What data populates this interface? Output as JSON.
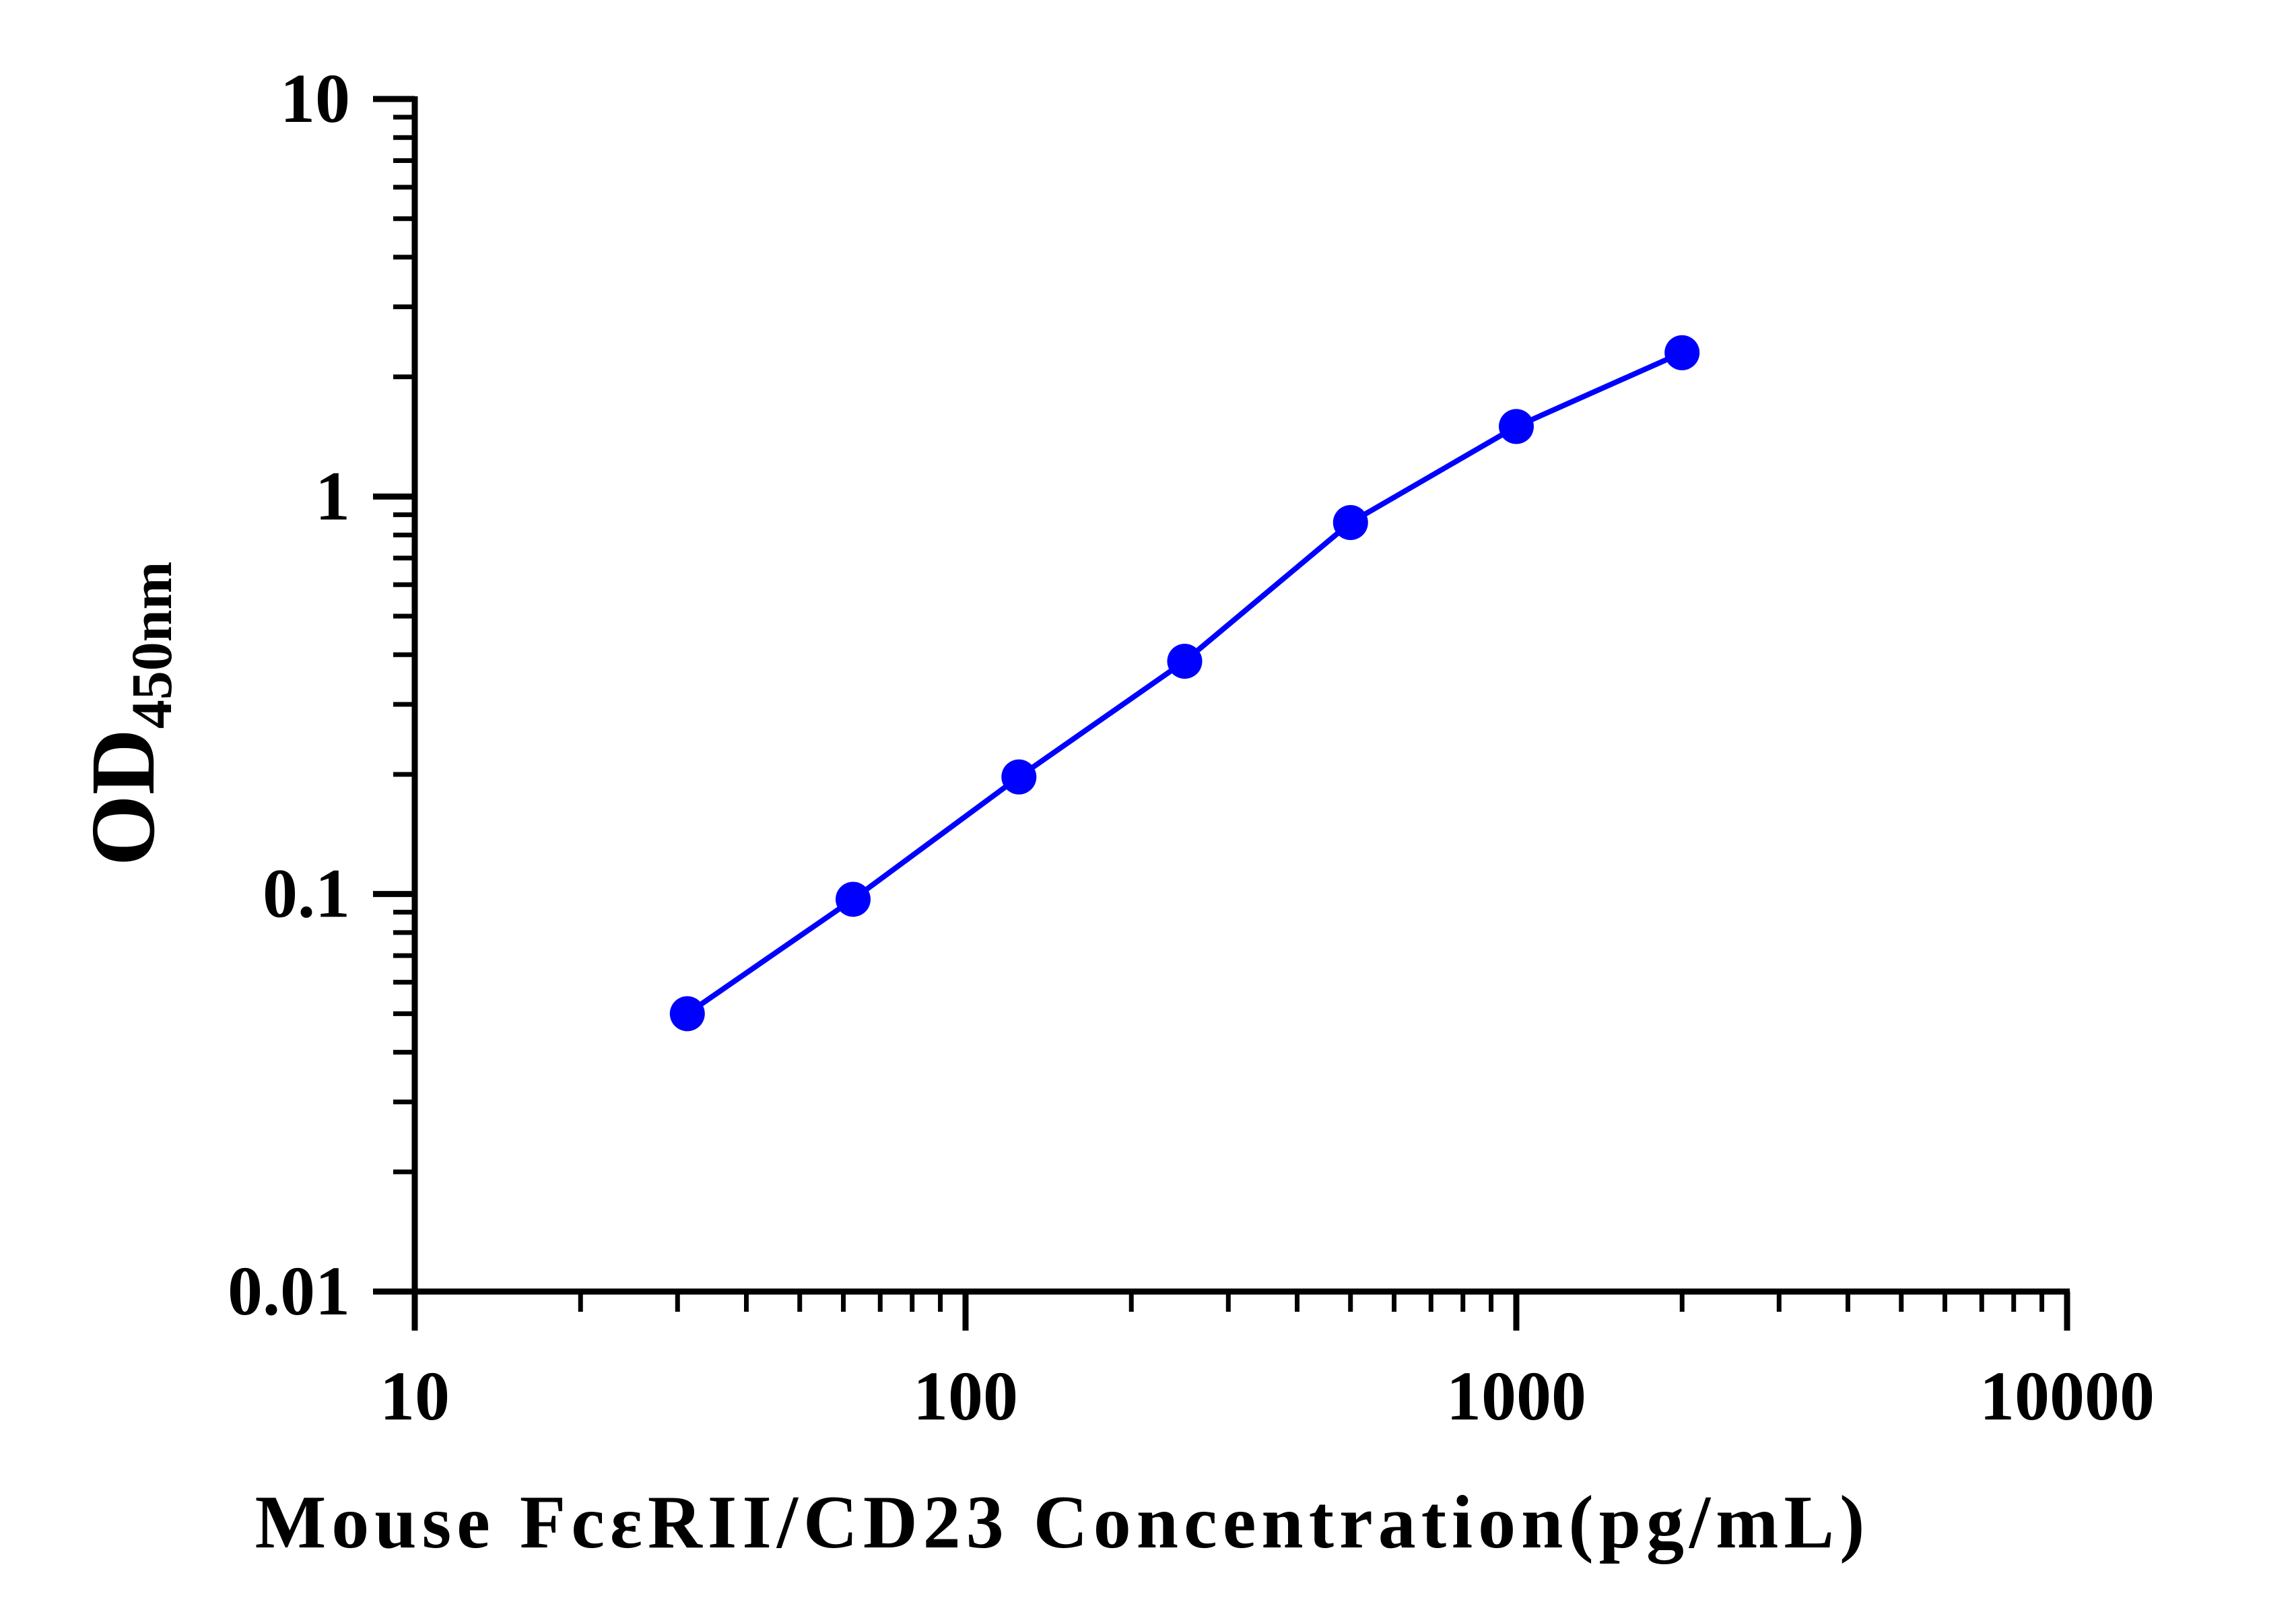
{
  "chart_data": {
    "type": "line",
    "title": "",
    "xlabel": "Mouse FcεRII/CD23 Concentration(pg/mL)",
    "ylabel": {
      "main": "OD",
      "subscript": "450nm"
    },
    "x_scale": "log",
    "y_scale": "log",
    "xlim": [
      10,
      10000
    ],
    "ylim": [
      0.01,
      10
    ],
    "x_ticks": [
      "10",
      "100",
      "1000",
      "10000"
    ],
    "y_ticks": [
      "0.01",
      "0.1",
      "1",
      "10"
    ],
    "grid": false,
    "legend": "none",
    "series": [
      {
        "color": "#0000ff",
        "points": [
          {
            "x": 31.25,
            "y": 0.05
          },
          {
            "x": 62.5,
            "y": 0.097
          },
          {
            "x": 125,
            "y": 0.197
          },
          {
            "x": 250,
            "y": 0.385
          },
          {
            "x": 500,
            "y": 0.86
          },
          {
            "x": 1000,
            "y": 1.5
          },
          {
            "x": 2000,
            "y": 2.3
          }
        ]
      }
    ]
  }
}
